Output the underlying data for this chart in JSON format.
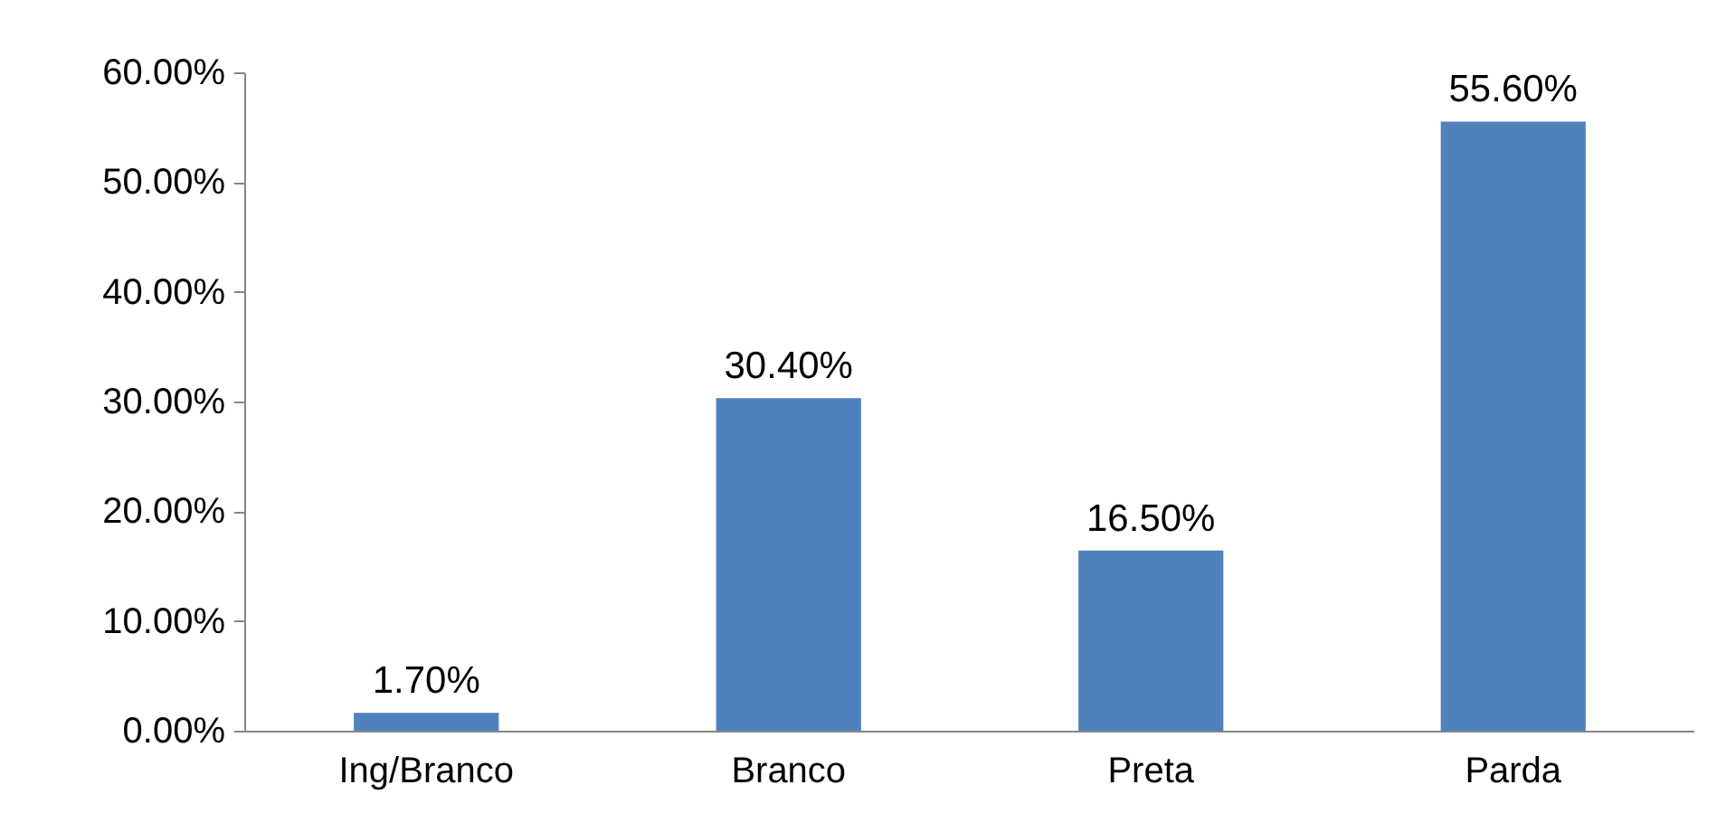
{
  "chart_data": {
    "type": "bar",
    "categories": [
      "Ing/Branco",
      "Branco",
      "Preta",
      "Parda"
    ],
    "values": [
      1.7,
      30.4,
      16.5,
      55.6
    ],
    "value_labels": [
      "1.70%",
      "30.40%",
      "16.50%",
      "55.60%"
    ],
    "color": "#4f81bd",
    "ylim": [
      0,
      60
    ],
    "yticks": [
      {
        "value": 0,
        "label": "0.00%"
      },
      {
        "value": 10,
        "label": "10.00%"
      },
      {
        "value": 20,
        "label": "20.00%"
      },
      {
        "value": 30,
        "label": "30.00%"
      },
      {
        "value": 40,
        "label": "40.00%"
      },
      {
        "value": 50,
        "label": "50.00%"
      },
      {
        "value": 60,
        "label": "60.00%"
      }
    ],
    "grid": false
  }
}
